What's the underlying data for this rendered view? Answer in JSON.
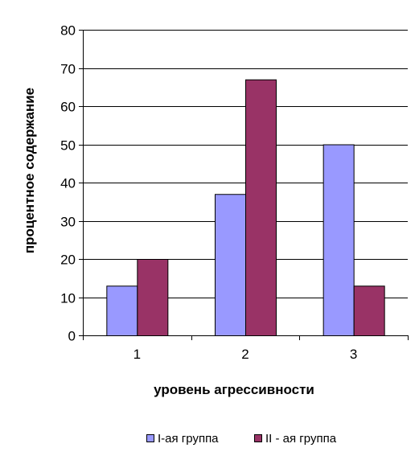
{
  "chart_data": {
    "type": "bar",
    "categories": [
      "1",
      "2",
      "3"
    ],
    "series": [
      {
        "name": "I-ая группа",
        "values": [
          13,
          37,
          50
        ],
        "color": "#9999ff"
      },
      {
        "name": "II - ая группа",
        "values": [
          20,
          67,
          13
        ],
        "color": "#993366"
      }
    ],
    "xlabel": "уровень агрессивности",
    "ylabel": "процентное содержание",
    "ylim": [
      0,
      80
    ],
    "yticks": [
      0,
      10,
      20,
      30,
      40,
      50,
      60,
      70,
      80
    ],
    "grid": true,
    "legend_position": "bottom"
  }
}
